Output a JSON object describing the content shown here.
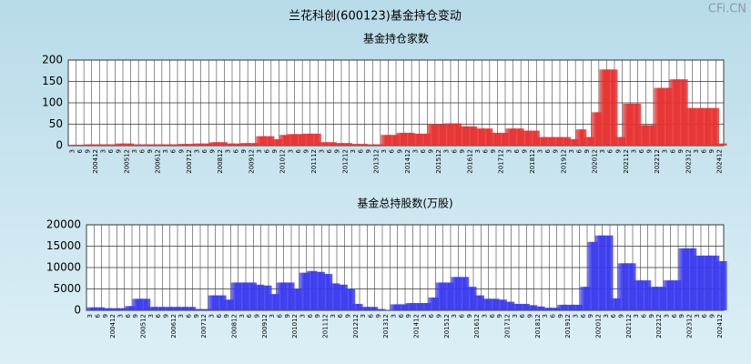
{
  "title": "兰花科创(600123)基金持仓变动",
  "watermark": "CFi.CN",
  "chart_data": [
    {
      "type": "bar",
      "title": "基金持仓家数",
      "color": "#e83030",
      "categories": [
        "3",
        "6",
        "9",
        "200412",
        "3",
        "6",
        "9",
        "200512",
        "3",
        "6",
        "9",
        "200612",
        "3",
        "6",
        "9",
        "200712",
        "3",
        "6",
        "9",
        "200812",
        "3",
        "6",
        "9",
        "200912",
        "3",
        "6",
        "9",
        "201012",
        "3",
        "6",
        "9",
        "201112",
        "3",
        "6",
        "9",
        "201212",
        "3",
        "6",
        "9",
        "201312",
        "3",
        "6",
        "9",
        "201412",
        "3",
        "6",
        "9",
        "201512",
        "3",
        "6",
        "9",
        "201612",
        "3",
        "6",
        "9",
        "201712",
        "3",
        "6",
        "9",
        "201812",
        "3",
        "6",
        "9",
        "201912",
        "3",
        "6",
        "9",
        "202012",
        "3",
        "6",
        "9",
        "202112",
        "3",
        "6",
        "9",
        "202212",
        "3",
        "6",
        "9",
        "202312",
        "3",
        "6",
        "9",
        "202412"
      ],
      "values": [
        2,
        2,
        3,
        3,
        3,
        3,
        5,
        5,
        3,
        3,
        3,
        3,
        3,
        3,
        4,
        4,
        5,
        5,
        8,
        8,
        5,
        5,
        6,
        6,
        22,
        22,
        15,
        25,
        27,
        27,
        28,
        28,
        8,
        8,
        6,
        6,
        4,
        4,
        3,
        3,
        25,
        25,
        30,
        30,
        28,
        28,
        50,
        50,
        52,
        52,
        45,
        45,
        40,
        40,
        30,
        30,
        40,
        40,
        35,
        35,
        20,
        20,
        20,
        20,
        15,
        38,
        20,
        78,
        178,
        178,
        20,
        98,
        98,
        48,
        48,
        135,
        135,
        155,
        155,
        88,
        88,
        88,
        88,
        5
      ],
      "ylim": [
        0,
        200
      ],
      "yticks": [
        0,
        50,
        100,
        150,
        200
      ],
      "grid": true
    },
    {
      "type": "bar",
      "title": "基金总持股数(万股)",
      "color": "#3a3af0",
      "categories": [
        "3",
        "6",
        "9",
        "200412",
        "3",
        "6",
        "9",
        "200512",
        "3",
        "6",
        "9",
        "200612",
        "3",
        "6",
        "9",
        "200712",
        "3",
        "6",
        "9",
        "200812",
        "3",
        "6",
        "9",
        "200912",
        "3",
        "6",
        "9",
        "201012",
        "3",
        "6",
        "9",
        "201112",
        "3",
        "6",
        "9",
        "201212",
        "3",
        "6",
        "9",
        "201312",
        "3",
        "6",
        "9",
        "201412",
        "3",
        "6",
        "9",
        "201512",
        "3",
        "6",
        "9",
        "201612",
        "3",
        "6",
        "9",
        "201712",
        "3",
        "6",
        "9",
        "201812",
        "3",
        "6",
        "9",
        "201912",
        "3",
        "6",
        "9",
        "202012",
        "3",
        "6",
        "9",
        "202112",
        "3",
        "6",
        "9",
        "202212",
        "3",
        "6",
        "9",
        "202312",
        "3",
        "6",
        "9",
        "202412"
      ],
      "values": [
        700,
        700,
        500,
        500,
        500,
        1000,
        2700,
        2700,
        800,
        800,
        800,
        800,
        800,
        800,
        300,
        300,
        3500,
        3500,
        2500,
        6500,
        6500,
        6500,
        6000,
        5800,
        3800,
        6500,
        6500,
        5000,
        8800,
        9200,
        9000,
        8500,
        6300,
        6000,
        5000,
        1500,
        800,
        800,
        300,
        100,
        1400,
        1400,
        1700,
        1700,
        1700,
        3000,
        6500,
        6500,
        7800,
        7800,
        5500,
        3500,
        2700,
        2700,
        2500,
        2000,
        1500,
        1500,
        1200,
        900,
        600,
        600,
        1300,
        1300,
        1300,
        5500,
        16000,
        17500,
        17500,
        2800,
        11000,
        11000,
        7000,
        7000,
        5500,
        5500,
        7000,
        7000,
        14500,
        14500,
        12800,
        12800,
        12800,
        11500
      ],
      "ylim": [
        0,
        20000
      ],
      "yticks": [
        0,
        5000,
        10000,
        15000,
        20000
      ],
      "grid": true
    }
  ]
}
